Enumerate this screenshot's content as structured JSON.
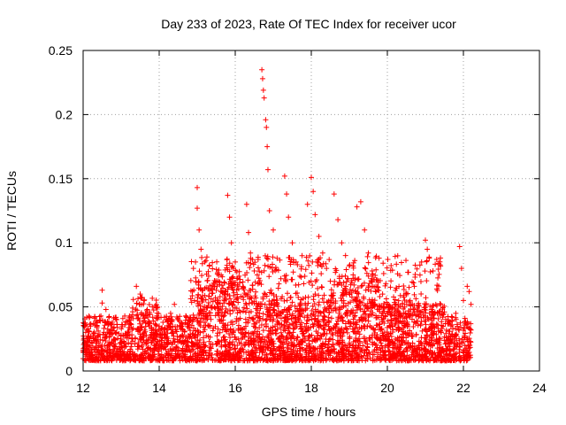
{
  "chart_data": {
    "type": "scatter",
    "title": "Day 233 of 2023, Rate Of TEC Index for receiver ucor",
    "xlabel": "GPS time / hours",
    "ylabel": "ROTI / TECUs",
    "xlim": [
      12,
      24
    ],
    "ylim": [
      0,
      0.25
    ],
    "xticks": [
      12,
      14,
      16,
      18,
      20,
      22,
      24
    ],
    "yticks": [
      0,
      0.05,
      0.1,
      0.15,
      0.2,
      0.25
    ],
    "xtick_labels": [
      "12",
      "14",
      "16",
      "18",
      "20",
      "22",
      "24"
    ],
    "ytick_labels": [
      "0",
      "0.05",
      "0.1",
      "0.15",
      "0.2",
      "0.25"
    ],
    "grid": true,
    "marker": "plus",
    "color": "#ff0000",
    "x_data_range": [
      12.0,
      22.2
    ],
    "series": [
      {
        "points": [
          [
            12.1,
            0.032
          ],
          [
            12.2,
            0.027
          ],
          [
            12.3,
            0.041
          ],
          [
            12.4,
            0.022
          ],
          [
            12.5,
            0.063
          ],
          [
            12.5,
            0.053
          ],
          [
            12.6,
            0.048
          ],
          [
            12.7,
            0.03
          ],
          [
            12.8,
            0.024
          ],
          [
            12.9,
            0.034
          ],
          [
            13.0,
            0.028
          ],
          [
            13.1,
            0.036
          ],
          [
            13.2,
            0.031
          ],
          [
            13.3,
            0.044
          ],
          [
            13.4,
            0.066
          ],
          [
            13.5,
            0.06
          ],
          [
            13.6,
            0.055
          ],
          [
            13.7,
            0.042
          ],
          [
            13.8,
            0.033
          ],
          [
            13.9,
            0.029
          ],
          [
            14.0,
            0.035
          ],
          [
            14.1,
            0.038
          ],
          [
            14.2,
            0.032
          ],
          [
            14.3,
            0.045
          ],
          [
            14.4,
            0.052
          ],
          [
            14.5,
            0.04
          ],
          [
            14.6,
            0.037
          ],
          [
            14.7,
            0.043
          ],
          [
            14.8,
            0.039
          ],
          [
            14.9,
            0.08
          ],
          [
            15.0,
            0.143
          ],
          [
            15.0,
            0.127
          ],
          [
            15.05,
            0.11
          ],
          [
            15.1,
            0.095
          ],
          [
            15.2,
            0.085
          ],
          [
            15.3,
            0.074
          ],
          [
            15.4,
            0.067
          ],
          [
            15.5,
            0.063
          ],
          [
            15.6,
            0.058
          ],
          [
            15.7,
            0.053
          ],
          [
            15.8,
            0.137
          ],
          [
            15.85,
            0.12
          ],
          [
            15.9,
            0.1
          ],
          [
            16.0,
            0.085
          ],
          [
            16.1,
            0.074
          ],
          [
            16.2,
            0.066
          ],
          [
            16.3,
            0.13
          ],
          [
            16.35,
            0.108
          ],
          [
            16.4,
            0.092
          ],
          [
            16.5,
            0.078
          ],
          [
            16.6,
            0.068
          ],
          [
            16.7,
            0.235
          ],
          [
            16.72,
            0.228
          ],
          [
            16.74,
            0.219
          ],
          [
            16.76,
            0.213
          ],
          [
            16.8,
            0.196
          ],
          [
            16.82,
            0.19
          ],
          [
            16.84,
            0.175
          ],
          [
            16.86,
            0.157
          ],
          [
            16.9,
            0.125
          ],
          [
            17.0,
            0.11
          ],
          [
            17.1,
            0.088
          ],
          [
            17.2,
            0.072
          ],
          [
            17.3,
            0.152
          ],
          [
            17.35,
            0.138
          ],
          [
            17.4,
            0.12
          ],
          [
            17.5,
            0.1
          ],
          [
            17.6,
            0.085
          ],
          [
            17.7,
            0.074
          ],
          [
            17.8,
            0.068
          ],
          [
            17.9,
            0.13
          ],
          [
            18.0,
            0.151
          ],
          [
            18.05,
            0.14
          ],
          [
            18.1,
            0.122
          ],
          [
            18.2,
            0.105
          ],
          [
            18.3,
            0.092
          ],
          [
            18.4,
            0.08
          ],
          [
            18.5,
            0.07
          ],
          [
            18.6,
            0.138
          ],
          [
            18.7,
            0.118
          ],
          [
            18.8,
            0.1
          ],
          [
            18.9,
            0.09
          ],
          [
            19.0,
            0.082
          ],
          [
            19.1,
            0.075
          ],
          [
            19.2,
            0.128
          ],
          [
            19.3,
            0.132
          ],
          [
            19.4,
            0.11
          ],
          [
            19.5,
            0.092
          ],
          [
            19.6,
            0.078
          ],
          [
            19.7,
            0.066
          ],
          [
            19.8,
            0.058
          ],
          [
            19.9,
            0.05
          ],
          [
            20.0,
            0.045
          ],
          [
            20.1,
            0.04
          ],
          [
            20.2,
            0.036
          ],
          [
            20.3,
            0.038
          ],
          [
            20.4,
            0.042
          ],
          [
            20.5,
            0.06
          ],
          [
            20.6,
            0.055
          ],
          [
            20.7,
            0.048
          ],
          [
            20.8,
            0.044
          ],
          [
            20.9,
            0.085
          ],
          [
            21.0,
            0.102
          ],
          [
            21.05,
            0.095
          ],
          [
            21.1,
            0.088
          ],
          [
            21.2,
            0.078
          ],
          [
            21.3,
            0.064
          ],
          [
            21.4,
            0.052
          ],
          [
            21.5,
            0.046
          ],
          [
            21.6,
            0.04
          ],
          [
            21.7,
            0.036
          ],
          [
            21.8,
            0.045
          ],
          [
            21.9,
            0.097
          ],
          [
            21.95,
            0.08
          ],
          [
            22.0,
            0.055
          ],
          [
            22.1,
            0.066
          ],
          [
            22.15,
            0.062
          ],
          [
            22.2,
            0.052
          ]
        ]
      }
    ]
  }
}
